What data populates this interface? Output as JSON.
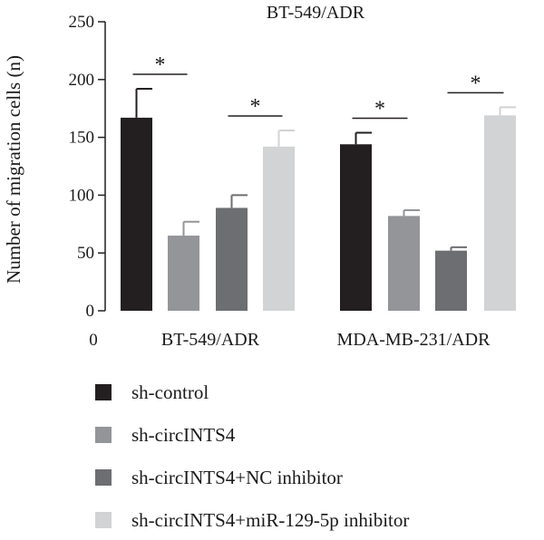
{
  "chart_data": {
    "type": "bar",
    "title": "BT-549/ADR",
    "ylabel": "Number of migration cells (n)",
    "xlabel": "",
    "x_origin_label": "0",
    "ylim": [
      0,
      250
    ],
    "yticks": [
      0,
      50,
      100,
      150,
      200,
      250
    ],
    "categories": [
      "BT-549/ADR",
      "MDA-MB-231/ADR"
    ],
    "series": [
      {
        "name": "sh-control",
        "color": "#231f20",
        "values": [
          167,
          144
        ],
        "errors": [
          25,
          10
        ]
      },
      {
        "name": "sh-circINTS4",
        "color": "#939598",
        "values": [
          65,
          82
        ],
        "errors": [
          12,
          5
        ]
      },
      {
        "name": "sh-circINTS4+NC inhibitor",
        "color": "#6d6e71",
        "values": [
          89,
          52
        ],
        "errors": [
          11,
          3
        ]
      },
      {
        "name": "sh-circINTS4+miR-129-5p inhibitor",
        "color": "#d1d3d4",
        "values": [
          142,
          169
        ],
        "errors": [
          14,
          7
        ]
      }
    ],
    "significance": [
      {
        "category": 0,
        "from_series": 0,
        "to_series": 1,
        "label": "*"
      },
      {
        "category": 0,
        "from_series": 2,
        "to_series": 3,
        "label": "*"
      },
      {
        "category": 1,
        "from_series": 0,
        "to_series": 1,
        "label": "*"
      },
      {
        "category": 1,
        "from_series": 2,
        "to_series": 3,
        "label": "*"
      }
    ],
    "grid": false,
    "legend_position": "bottom"
  }
}
